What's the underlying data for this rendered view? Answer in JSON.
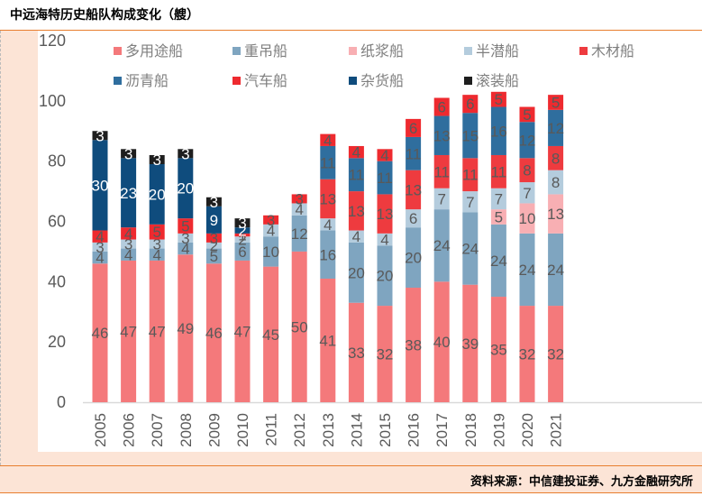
{
  "header": {
    "title": "中远海特历史船队构成变化（艘）"
  },
  "footer": {
    "source": "资料来源：中信建投证券、九方金融研究所"
  },
  "chart_data": {
    "type": "bar",
    "stacked": true,
    "title": "中远海特历史船队构成变化（艘）",
    "xlabel": "",
    "ylabel": "",
    "ylim": [
      0,
      120
    ],
    "yticks": [
      0,
      20,
      40,
      60,
      80,
      100,
      120
    ],
    "grid": false,
    "legend_position": "top",
    "categories": [
      "2005",
      "2006",
      "2007",
      "2008",
      "2009",
      "2010",
      "2011",
      "2012",
      "2013",
      "2014",
      "2015",
      "2016",
      "2017",
      "2018",
      "2019",
      "2020",
      "2021"
    ],
    "series": [
      {
        "name": "多用途船",
        "color": "#F4797B",
        "label_color": "#595959",
        "values": [
          46,
          47,
          47,
          49,
          46,
          47,
          45,
          50,
          41,
          33,
          32,
          38,
          40,
          39,
          35,
          32,
          32
        ]
      },
      {
        "name": "重吊船",
        "color": "#7FA5C0",
        "label_color": "#595959",
        "values": [
          4,
          4,
          4,
          4,
          5,
          6,
          10,
          12,
          16,
          20,
          20,
          20,
          24,
          24,
          24,
          24,
          24
        ]
      },
      {
        "name": "纸浆船",
        "color": "#F8AFB3",
        "label_color": "#595959",
        "values": [
          0,
          0,
          0,
          0,
          0,
          0,
          0,
          0,
          0,
          0,
          0,
          0,
          0,
          0,
          5,
          10,
          13
        ]
      },
      {
        "name": "半潜船",
        "color": "#B4CCDD",
        "label_color": "#595959",
        "values": [
          3,
          3,
          3,
          3,
          2,
          2,
          4,
          4,
          4,
          4,
          4,
          6,
          7,
          7,
          7,
          7,
          8
        ]
      },
      {
        "name": "木材船",
        "color": "#EE3B3F",
        "label_color": "#595959",
        "values": [
          0,
          0,
          0,
          0,
          0,
          0,
          0,
          0,
          13,
          13,
          13,
          13,
          11,
          11,
          11,
          8,
          8
        ]
      },
      {
        "name": "沥青船",
        "color": "#2F6E9E",
        "label_color": "#595959",
        "values": [
          0,
          0,
          0,
          0,
          0,
          0,
          0,
          0,
          11,
          11,
          11,
          11,
          13,
          15,
          16,
          12,
          12
        ]
      },
      {
        "name": "汽车船",
        "color": "#EE2A2F",
        "label_color": "#595959",
        "values": [
          4,
          4,
          5,
          5,
          3,
          1,
          3,
          3,
          4,
          4,
          4,
          6,
          6,
          6,
          5,
          5,
          5
        ]
      },
      {
        "name": "杂货船",
        "color": "#0F4C7D",
        "label_color": "#ffffff",
        "values": [
          30,
          23,
          20,
          20,
          9,
          2,
          0,
          0,
          0,
          0,
          0,
          0,
          0,
          0,
          0,
          0,
          0
        ]
      },
      {
        "name": "滚装船",
        "color": "#1E1E1E",
        "label_color": "#ffffff",
        "values": [
          3,
          3,
          3,
          3,
          3,
          3,
          0,
          0,
          0,
          0,
          0,
          0,
          0,
          0,
          0,
          0,
          0
        ]
      }
    ]
  }
}
